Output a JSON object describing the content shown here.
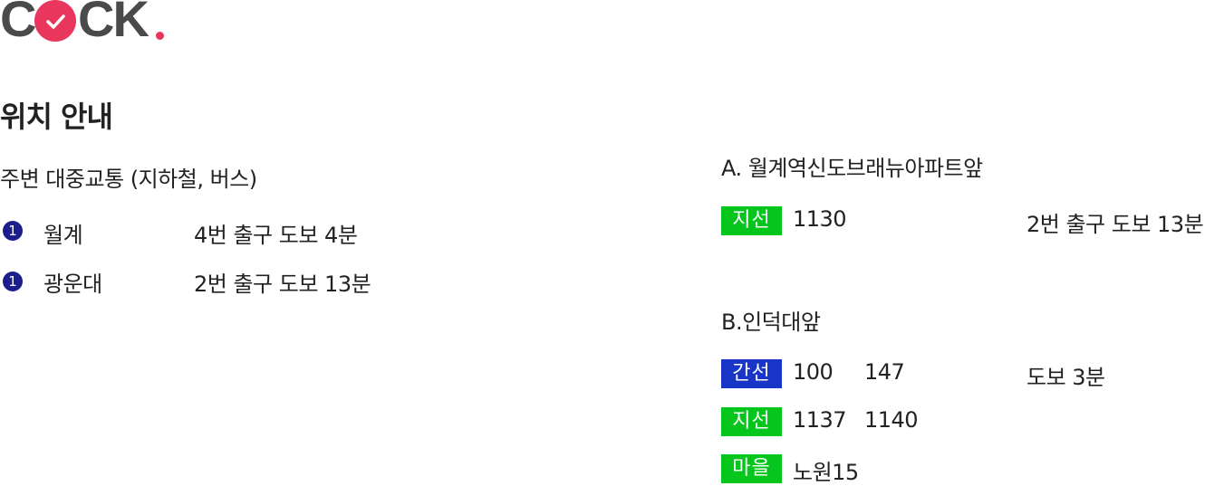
{
  "logo": {
    "text_left": "C",
    "text_right": "CK",
    "brand_color": "#e8365d",
    "icon": "check-icon"
  },
  "page_title": "위치 안내",
  "subway": {
    "heading": "주변 대중교통 (지하철, 버스)",
    "lines": [
      {
        "badge": "1",
        "station": "월계",
        "route": "4번 출구 도보 4분"
      },
      {
        "badge": "1",
        "station": "광운대",
        "route": "2번 출구 도보 13분"
      }
    ]
  },
  "bus": {
    "stops": [
      {
        "title": "A. 월계역신도브래뉴아파트앞",
        "rows": [
          {
            "tag": "지선",
            "tag_color": "#06c51c",
            "numbers": [
              "1130"
            ],
            "walk": "2번 출구 도보 13분"
          }
        ]
      },
      {
        "title": "B.인덕대앞",
        "rows": [
          {
            "tag": "간선",
            "tag_color": "#1935c8",
            "numbers": [
              "100",
              "147"
            ],
            "walk": "도보 3분"
          },
          {
            "tag": "지선",
            "tag_color": "#06c51c",
            "numbers": [
              "1137",
              "1140"
            ],
            "walk": ""
          },
          {
            "tag": "마을",
            "tag_color": "#06c51c",
            "numbers": [
              "노원15"
            ],
            "walk": ""
          }
        ]
      }
    ]
  }
}
